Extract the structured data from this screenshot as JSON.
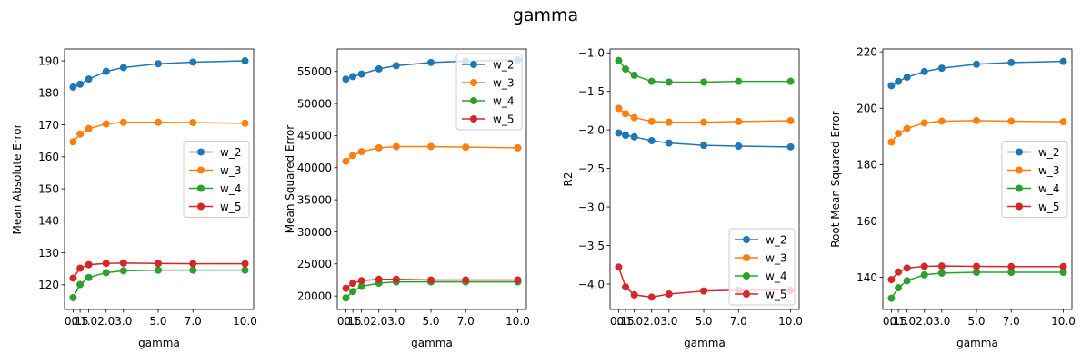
{
  "suptitle": "gamma",
  "colors": {
    "w_2": "#1f77b4",
    "w_3": "#ff7f0e",
    "w_4": "#2ca02c",
    "w_5": "#d62728"
  },
  "chart_data": [
    {
      "type": "line",
      "xlabel": "gamma",
      "ylabel": "Mean Absolute Error",
      "x": [
        0.1,
        0.5,
        1.0,
        2.0,
        3.0,
        5.0,
        7.0,
        10.0
      ],
      "xtick_values": [
        0.1,
        0.5,
        1.0,
        2.0,
        3.0,
        5.0,
        7.0,
        10.0
      ],
      "xtick_labels": [
        "0.1",
        "0.5",
        "1.0",
        "2.0",
        "3.0",
        "5.0",
        "7.0",
        "10.0"
      ],
      "xlim": [
        -0.395,
        10.495
      ],
      "ylim": [
        112.3,
        193.7
      ],
      "yticks": [
        120,
        130,
        140,
        150,
        160,
        170,
        180,
        190
      ],
      "ytick_labels": [
        "120",
        "130",
        "140",
        "150",
        "160",
        "170",
        "180",
        "190"
      ],
      "legend_position": "center-right",
      "series": [
        {
          "name": "w_2",
          "values": [
            181.8,
            182.7,
            184.3,
            186.7,
            187.9,
            189.1,
            189.6,
            190.0
          ]
        },
        {
          "name": "w_3",
          "values": [
            164.7,
            167.1,
            168.8,
            170.3,
            170.8,
            170.8,
            170.7,
            170.5
          ]
        },
        {
          "name": "w_4",
          "values": [
            116.0,
            120.1,
            122.3,
            123.8,
            124.4,
            124.6,
            124.6,
            124.6
          ]
        },
        {
          "name": "w_5",
          "values": [
            122.1,
            125.2,
            126.3,
            126.7,
            126.8,
            126.7,
            126.6,
            126.6
          ]
        }
      ]
    },
    {
      "type": "line",
      "xlabel": "gamma",
      "ylabel": "Mean Squared Error",
      "x": [
        0.1,
        0.5,
        1.0,
        2.0,
        3.0,
        5.0,
        7.0,
        10.0
      ],
      "xtick_values": [
        0.1,
        0.5,
        1.0,
        2.0,
        3.0,
        5.0,
        7.0,
        10.0
      ],
      "xtick_labels": [
        "0.1",
        "0.5",
        "1.0",
        "2.0",
        "3.0",
        "5.0",
        "7.0",
        "10.0"
      ],
      "xlim": [
        -0.395,
        10.495
      ],
      "ylim": [
        17900,
        58500
      ],
      "yticks": [
        20000,
        25000,
        30000,
        35000,
        40000,
        45000,
        50000,
        55000
      ],
      "ytick_labels": [
        "20000",
        "25000",
        "30000",
        "35000",
        "40000",
        "45000",
        "50000",
        "55000"
      ],
      "legend_position": "upper-right",
      "series": [
        {
          "name": "w_2",
          "values": [
            53800,
            54200,
            54600,
            55400,
            55900,
            56400,
            56600,
            56800
          ]
        },
        {
          "name": "w_3",
          "values": [
            41000,
            41900,
            42500,
            43100,
            43300,
            43300,
            43200,
            43100
          ]
        },
        {
          "name": "w_4",
          "values": [
            19700,
            20700,
            21500,
            22000,
            22200,
            22200,
            22200,
            22200
          ]
        },
        {
          "name": "w_5",
          "values": [
            21200,
            22000,
            22400,
            22600,
            22600,
            22500,
            22500,
            22500
          ]
        }
      ]
    },
    {
      "type": "line",
      "xlabel": "gamma",
      "ylabel": "R2",
      "x": [
        0.1,
        0.5,
        1.0,
        2.0,
        3.0,
        5.0,
        7.0,
        10.0
      ],
      "xtick_values": [
        0.1,
        0.5,
        1.0,
        2.0,
        3.0,
        5.0,
        7.0,
        10.0
      ],
      "xtick_labels": [
        "0.1",
        "0.5",
        "1.0",
        "2.0",
        "3.0",
        "5.0",
        "7.0",
        "10.0"
      ],
      "xlim": [
        -0.395,
        10.495
      ],
      "ylim": [
        -4.33,
        -0.95
      ],
      "yticks": [
        -4.0,
        -3.5,
        -3.0,
        -2.5,
        -2.0,
        -1.5,
        -1.0
      ],
      "ytick_labels": [
        "−4.0",
        "−3.5",
        "−3.0",
        "−2.5",
        "−2.0",
        "−1.5",
        "−1.0"
      ],
      "legend_position": "lower-right",
      "series": [
        {
          "name": "w_2",
          "values": [
            -2.04,
            -2.07,
            -2.09,
            -2.14,
            -2.17,
            -2.2,
            -2.21,
            -2.22
          ]
        },
        {
          "name": "w_3",
          "values": [
            -1.72,
            -1.79,
            -1.84,
            -1.89,
            -1.9,
            -1.9,
            -1.89,
            -1.88
          ]
        },
        {
          "name": "w_4",
          "values": [
            -1.1,
            -1.21,
            -1.29,
            -1.37,
            -1.38,
            -1.38,
            -1.37,
            -1.37
          ]
        },
        {
          "name": "w_5",
          "values": [
            -3.78,
            -4.04,
            -4.14,
            -4.17,
            -4.13,
            -4.09,
            -4.08,
            -4.08
          ]
        }
      ]
    },
    {
      "type": "line",
      "xlabel": "gamma",
      "ylabel": "Root Mean Squared Error",
      "x": [
        0.1,
        0.5,
        1.0,
        2.0,
        3.0,
        5.0,
        7.0,
        10.0
      ],
      "xtick_values": [
        0.1,
        0.5,
        1.0,
        2.0,
        3.0,
        5.0,
        7.0,
        10.0
      ],
      "xtick_labels": [
        "0.1",
        "0.5",
        "1.0",
        "2.0",
        "3.0",
        "5.0",
        "7.0",
        "10.0"
      ],
      "xlim": [
        -0.395,
        10.495
      ],
      "ylim": [
        128.6,
        221.0
      ],
      "yticks": [
        140,
        160,
        180,
        200,
        220
      ],
      "ytick_labels": [
        "140",
        "160",
        "180",
        "200",
        "220"
      ],
      "legend_position": "center-right",
      "series": [
        {
          "name": "w_2",
          "values": [
            208.0,
            209.5,
            211.0,
            213.0,
            214.2,
            215.6,
            216.2,
            216.6
          ]
        },
        {
          "name": "w_3",
          "values": [
            188.0,
            191.0,
            192.8,
            194.8,
            195.4,
            195.6,
            195.4,
            195.2
          ]
        },
        {
          "name": "w_4",
          "values": [
            132.6,
            136.3,
            138.8,
            140.9,
            141.5,
            141.8,
            141.8,
            141.8
          ]
        },
        {
          "name": "w_5",
          "values": [
            139.2,
            141.9,
            143.3,
            143.9,
            144.0,
            143.9,
            143.8,
            143.8
          ]
        }
      ]
    }
  ]
}
